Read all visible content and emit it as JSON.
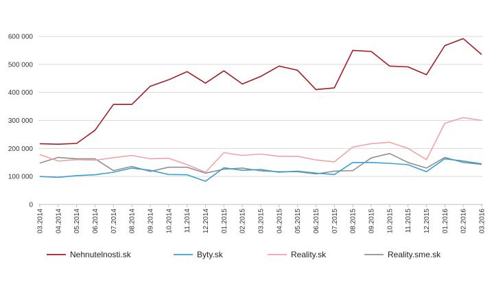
{
  "chart_data": {
    "type": "line",
    "categories": [
      "03.2014",
      "04.2014",
      "05.2014",
      "06.2014",
      "07.2014",
      "08.2014",
      "09.2014",
      "10.2014",
      "11.2014",
      "12.2014",
      "01.2015",
      "02.2015",
      "03.2015",
      "04.2015",
      "05.2015",
      "06.2015",
      "07.2015",
      "08.2015",
      "09.2015",
      "10.2015",
      "11.2015",
      "12.2015",
      "01.2016",
      "02.2016",
      "03.2016"
    ],
    "ylim": [
      0,
      600000
    ],
    "yticks": [
      0,
      100000,
      200000,
      300000,
      400000,
      500000,
      600000
    ],
    "ytick_labels": [
      "0",
      "100 000",
      "200 000",
      "300 000",
      "400 000",
      "500 000",
      "600 000"
    ],
    "grid": "horizontal",
    "legend_position": "bottom",
    "series": [
      {
        "name": "Nehnutelnosti.sk",
        "color": "#a31b22",
        "values": [
          217000,
          215000,
          218000,
          265000,
          357000,
          357000,
          422000,
          445000,
          474000,
          433000,
          477000,
          430000,
          457000,
          494000,
          479000,
          410000,
          416000,
          550000,
          546000,
          494000,
          491000,
          463000,
          567000,
          592000,
          535000
        ]
      },
      {
        "name": "Byty.sk",
        "color": "#3a9fcc",
        "values": [
          100000,
          97000,
          103000,
          106000,
          115000,
          130000,
          122000,
          107000,
          106000,
          83000,
          131000,
          122000,
          125000,
          115000,
          119000,
          112000,
          107000,
          150000,
          150000,
          147000,
          142000,
          117000,
          163000,
          155000,
          145000
        ]
      },
      {
        "name": "Reality.sk",
        "color": "#f0a3a3",
        "values": [
          178000,
          155000,
          160000,
          158000,
          167000,
          175000,
          163000,
          165000,
          142000,
          115000,
          185000,
          175000,
          180000,
          172000,
          172000,
          159000,
          152000,
          205000,
          217000,
          222000,
          200000,
          160000,
          290000,
          310000,
          300000
        ]
      },
      {
        "name": "Reality.sme.sk",
        "color": "#8f8f8f",
        "values": [
          148000,
          168000,
          163000,
          163000,
          121000,
          136000,
          118000,
          133000,
          133000,
          112000,
          126000,
          130000,
          120000,
          117000,
          117000,
          109000,
          119000,
          121000,
          166000,
          182000,
          150000,
          130000,
          168000,
          150000,
          143000
        ]
      }
    ]
  }
}
